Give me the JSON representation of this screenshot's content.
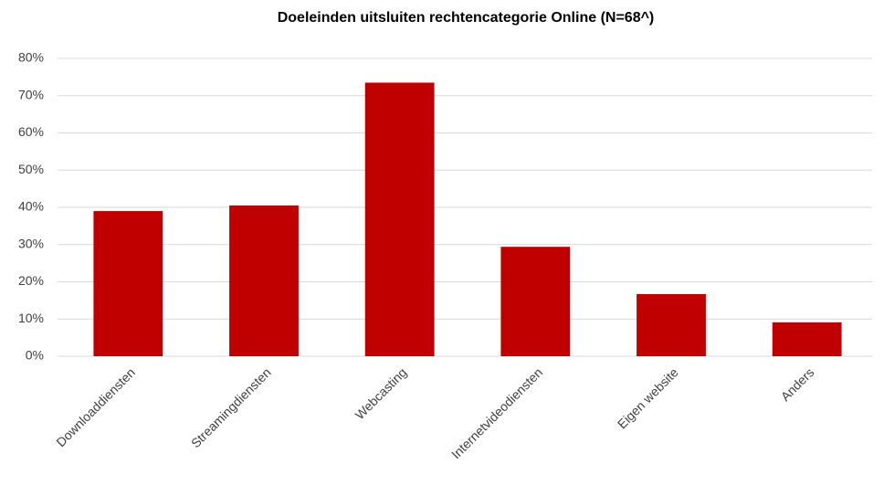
{
  "chart_data": {
    "type": "bar",
    "title": "Doeleinden uitsluiten rechtencategorie Online (N=68^)",
    "categories": [
      "Downloaddiensten",
      "Streamingdiensten",
      "Webcasting",
      "Internetvideodiensten",
      "Eigen website",
      "Anders"
    ],
    "values": [
      39,
      40.5,
      73.5,
      29.4,
      16.7,
      9.1
    ],
    "color": "#c00000",
    "ylim": [
      0,
      80
    ],
    "yticks": [
      {
        "value": 0,
        "label": "0%"
      },
      {
        "value": 10,
        "label": "10%"
      },
      {
        "value": 20,
        "label": "20%"
      },
      {
        "value": 30,
        "label": "30%"
      },
      {
        "value": 40,
        "label": "40%"
      },
      {
        "value": 50,
        "label": "50%"
      },
      {
        "value": 60,
        "label": "60%"
      },
      {
        "value": 70,
        "label": "70%"
      },
      {
        "value": 80,
        "label": "80%"
      }
    ],
    "grid": true
  }
}
